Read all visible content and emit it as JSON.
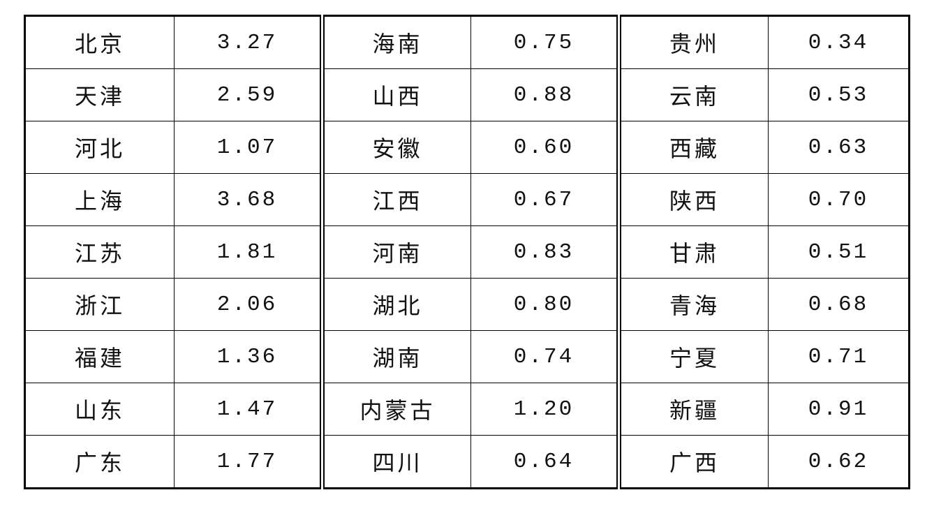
{
  "table": {
    "rows": [
      [
        {
          "name": "北京",
          "value": "3.27"
        },
        {
          "name": "海南",
          "value": "0.75"
        },
        {
          "name": "贵州",
          "value": "0.34"
        }
      ],
      [
        {
          "name": "天津",
          "value": "2.59"
        },
        {
          "name": "山西",
          "value": "0.88"
        },
        {
          "name": "云南",
          "value": "0.53"
        }
      ],
      [
        {
          "name": "河北",
          "value": "1.07"
        },
        {
          "name": "安徽",
          "value": "0.60"
        },
        {
          "name": "西藏",
          "value": "0.63"
        }
      ],
      [
        {
          "name": "上海",
          "value": "3.68"
        },
        {
          "name": "江西",
          "value": "0.67"
        },
        {
          "name": "陕西",
          "value": "0.70"
        }
      ],
      [
        {
          "name": "江苏",
          "value": "1.81"
        },
        {
          "name": "河南",
          "value": "0.83"
        },
        {
          "name": "甘肃",
          "value": "0.51"
        }
      ],
      [
        {
          "name": "浙江",
          "value": "2.06"
        },
        {
          "name": "湖北",
          "value": "0.80"
        },
        {
          "name": "青海",
          "value": "0.68"
        }
      ],
      [
        {
          "name": "福建",
          "value": "1.36"
        },
        {
          "name": "湖南",
          "value": "0.74"
        },
        {
          "name": "宁夏",
          "value": "0.71"
        }
      ],
      [
        {
          "name": "山东",
          "value": "1.47"
        },
        {
          "name": "内蒙古",
          "value": "1.20"
        },
        {
          "name": "新疆",
          "value": "0.91"
        }
      ],
      [
        {
          "name": "广东",
          "value": "1.77"
        },
        {
          "name": "四川",
          "value": "0.64"
        },
        {
          "name": "广西",
          "value": "0.62"
        }
      ]
    ]
  }
}
